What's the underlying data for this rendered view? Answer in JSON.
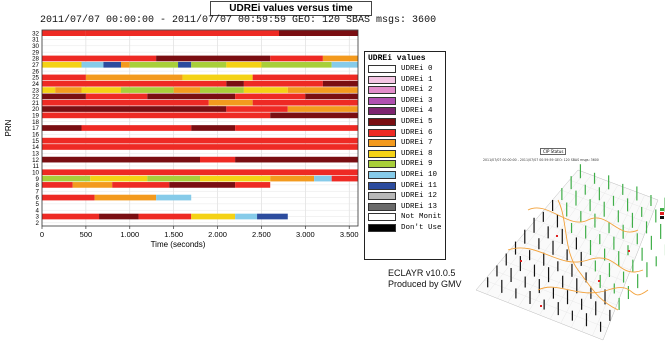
{
  "chart_data": {
    "type": "heatmap",
    "title": "UDREi values versus time",
    "subtitle": "2011/07/07 00:00:00 - 2011/07/07 00:59:59  GEO: 120  SBAS msgs: 3600",
    "xlabel": "Time (seconds)",
    "ylabel": "PRN",
    "xlim": [
      0,
      3600
    ],
    "x_ticks": [
      "0",
      "500",
      "1.000",
      "1.500",
      "2.000",
      "2.500",
      "3.000",
      "3.500"
    ],
    "y_ticks": [
      "2",
      "3",
      "4",
      "5",
      "6",
      "7",
      "8",
      "9",
      "10",
      "11",
      "12",
      "13",
      "14",
      "15",
      "16",
      "17",
      "18",
      "19",
      "20",
      "21",
      "22",
      "23",
      "24",
      "25",
      "26",
      "27",
      "28",
      "29",
      "30",
      "31",
      "32"
    ],
    "legend_title": "UDREi values",
    "legend": [
      {
        "label": "UDREi   0",
        "color": "#ffffff"
      },
      {
        "label": "UDREi   1",
        "color": "#f4c6e4"
      },
      {
        "label": "UDREi   2",
        "color": "#e28ccb"
      },
      {
        "label": "UDREi   3",
        "color": "#b04fb1"
      },
      {
        "label": "UDREi   4",
        "color": "#7d2470"
      },
      {
        "label": "UDREi   5",
        "color": "#7a0e12"
      },
      {
        "label": "UDREi   6",
        "color": "#ee2a24"
      },
      {
        "label": "UDREi   7",
        "color": "#f39a1e"
      },
      {
        "label": "UDREi   8",
        "color": "#f4d215"
      },
      {
        "label": "UDREi   9",
        "color": "#a8cf3a"
      },
      {
        "label": "UDREi  10",
        "color": "#86cbe9"
      },
      {
        "label": "UDREi  11",
        "color": "#2c4c9e"
      },
      {
        "label": "UDREi  12",
        "color": "#b8b8b8"
      },
      {
        "label": "UDREi  13",
        "color": "#6a6a6a"
      },
      {
        "label": "Not Monit",
        "color": "#ffffff"
      },
      {
        "label": "Don't Use",
        "color": "#000000"
      }
    ],
    "rows": [
      {
        "prn": 32,
        "segments": [
          [
            0,
            500,
            6
          ],
          [
            500,
            2700,
            6
          ],
          [
            2700,
            3600,
            5
          ]
        ]
      },
      {
        "prn": 28,
        "segments": [
          [
            0,
            1300,
            6
          ],
          [
            1300,
            2600,
            5
          ],
          [
            2600,
            3200,
            6
          ],
          [
            3200,
            3600,
            7
          ]
        ]
      },
      {
        "prn": 27,
        "segments": [
          [
            0,
            450,
            8
          ],
          [
            450,
            700,
            10
          ],
          [
            700,
            900,
            11
          ],
          [
            900,
            1000,
            7
          ],
          [
            1000,
            1550,
            9
          ],
          [
            1550,
            1700,
            11
          ],
          [
            1700,
            2100,
            9
          ],
          [
            2100,
            2500,
            8
          ],
          [
            2500,
            3300,
            9
          ],
          [
            3300,
            3600,
            10
          ]
        ]
      },
      {
        "prn": 25,
        "segments": [
          [
            0,
            500,
            6
          ],
          [
            500,
            1600,
            7
          ],
          [
            1600,
            2400,
            8
          ],
          [
            2400,
            3600,
            6
          ]
        ]
      },
      {
        "prn": 24,
        "segments": [
          [
            0,
            2100,
            6
          ],
          [
            2100,
            2300,
            5
          ],
          [
            2300,
            3200,
            6
          ],
          [
            3200,
            3600,
            5
          ]
        ]
      },
      {
        "prn": 23,
        "segments": [
          [
            0,
            150,
            8
          ],
          [
            150,
            450,
            7
          ],
          [
            450,
            900,
            8
          ],
          [
            900,
            1500,
            9
          ],
          [
            1500,
            1800,
            7
          ],
          [
            1800,
            2300,
            9
          ],
          [
            2300,
            2800,
            8
          ],
          [
            2800,
            3600,
            7
          ]
        ]
      },
      {
        "prn": 22,
        "segments": [
          [
            0,
            500,
            5
          ],
          [
            500,
            1200,
            6
          ],
          [
            1200,
            2200,
            5
          ],
          [
            2200,
            3000,
            6
          ],
          [
            3000,
            3600,
            5
          ]
        ]
      },
      {
        "prn": 21,
        "segments": [
          [
            0,
            1900,
            6
          ],
          [
            1900,
            2400,
            7
          ],
          [
            2400,
            3600,
            6
          ]
        ]
      },
      {
        "prn": 20,
        "segments": [
          [
            0,
            2100,
            5
          ],
          [
            2100,
            2800,
            6
          ],
          [
            2800,
            3600,
            7
          ]
        ]
      },
      {
        "prn": 19,
        "segments": [
          [
            0,
            2600,
            6
          ],
          [
            2600,
            3600,
            5
          ]
        ]
      },
      {
        "prn": 17,
        "segments": [
          [
            0,
            450,
            5
          ],
          [
            450,
            1700,
            6
          ],
          [
            1700,
            2200,
            5
          ],
          [
            2200,
            3600,
            6
          ]
        ]
      },
      {
        "prn": 15,
        "segments": [
          [
            0,
            3600,
            6
          ]
        ]
      },
      {
        "prn": 14,
        "segments": [
          [
            0,
            3600,
            6
          ]
        ]
      },
      {
        "prn": 12,
        "segments": [
          [
            0,
            1800,
            5
          ],
          [
            1800,
            2200,
            6
          ],
          [
            2200,
            3600,
            5
          ]
        ]
      },
      {
        "prn": 10,
        "segments": [
          [
            0,
            3600,
            6
          ]
        ]
      },
      {
        "prn": 9,
        "segments": [
          [
            0,
            550,
            9
          ],
          [
            550,
            1200,
            8
          ],
          [
            1200,
            1800,
            9
          ],
          [
            1800,
            2600,
            8
          ],
          [
            2600,
            3100,
            7
          ],
          [
            3100,
            3300,
            10
          ],
          [
            3300,
            3600,
            6
          ]
        ]
      },
      {
        "prn": 8,
        "segments": [
          [
            0,
            350,
            6
          ],
          [
            350,
            800,
            7
          ],
          [
            800,
            1450,
            6
          ],
          [
            1450,
            2200,
            5
          ],
          [
            2200,
            2600,
            6
          ]
        ]
      },
      {
        "prn": 6,
        "segments": [
          [
            0,
            600,
            6
          ],
          [
            600,
            1300,
            7
          ],
          [
            1300,
            1700,
            10
          ]
        ]
      },
      {
        "prn": 3,
        "segments": [
          [
            0,
            650,
            6
          ],
          [
            650,
            1100,
            5
          ],
          [
            1100,
            1700,
            6
          ],
          [
            1700,
            2200,
            8
          ],
          [
            2200,
            2450,
            10
          ],
          [
            2450,
            2800,
            11
          ]
        ]
      }
    ]
  },
  "brand": {
    "line1": "ECLAYR v10.0.5",
    "line2": "Produced by GMV"
  },
  "mini_chart": {
    "title": "CIP Status",
    "subtitle": "2011/07/07 00:00:00 - 2011/07/07 00:59:59  GEO: 120  SBAS msgs: 3600"
  }
}
